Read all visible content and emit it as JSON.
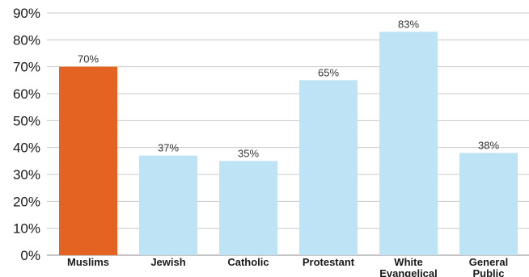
{
  "chart_data": {
    "type": "bar",
    "categories": [
      [
        "Muslims"
      ],
      [
        "Jewish"
      ],
      [
        "Catholic"
      ],
      [
        "Protestant"
      ],
      [
        "White",
        "Evangelical"
      ],
      [
        "General",
        "Public"
      ]
    ],
    "values": [
      70,
      37,
      35,
      65,
      83,
      38
    ],
    "data_labels": [
      "70%",
      "37%",
      "35%",
      "65%",
      "83%",
      "38%"
    ],
    "highlight_index": 0,
    "colors": {
      "highlight": "#e46323",
      "default": "#bde3f5"
    },
    "ylim": [
      0,
      90
    ],
    "y_ticks": [
      0,
      10,
      20,
      30,
      40,
      50,
      60,
      70,
      80,
      90
    ],
    "y_tick_labels": [
      "0%",
      "10%",
      "20%",
      "30%",
      "40%",
      "50%",
      "60%",
      "70%",
      "80%",
      "90%"
    ],
    "grid": true,
    "title": "",
    "xlabel": "",
    "ylabel": ""
  }
}
